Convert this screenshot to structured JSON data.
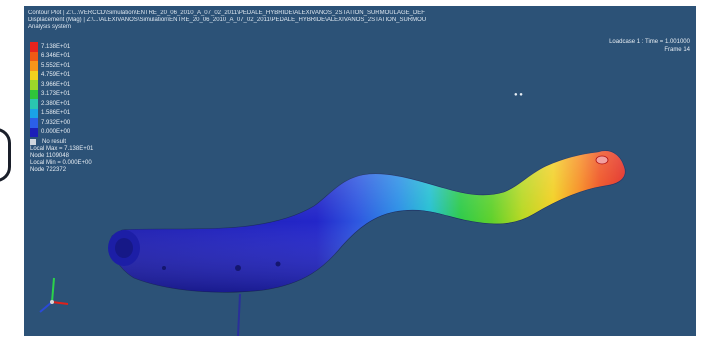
{
  "header": {
    "line1": "Contour Plot | Z:\\...\\VERCCD\\Simulation\\ENTRE_20_06_2010_A_07_02_2011\\PEDALE_HYBRIDE\\ALEXIVANOS_2STATION_SURMOULAGE_DEF",
    "line2": "Displacement (Mag) | Z:\\...\\ALEXIVANOS\\Simulation\\ENTRE_20_06_2010_A_07_02_2011\\PEDALE_HYBRIDE\\ALEXIVANOS_2STATION_SURMOU",
    "line3": "Analysis system"
  },
  "loadcase": {
    "line1": "Loadcase 1 : Time = 1.001000",
    "line2": "Frame 14"
  },
  "legend": {
    "items": [
      {
        "label": "7.138E+01",
        "color": "#e8231d"
      },
      {
        "label": "6.346E+01",
        "color": "#f05a14"
      },
      {
        "label": "5.552E+01",
        "color": "#f7951a"
      },
      {
        "label": "4.759E+01",
        "color": "#f2d11e"
      },
      {
        "label": "3.966E+01",
        "color": "#9cd62a"
      },
      {
        "label": "3.173E+01",
        "color": "#2fc63a"
      },
      {
        "label": "2.380E+01",
        "color": "#2ac6b0"
      },
      {
        "label": "1.586E+01",
        "color": "#1aa3e8"
      },
      {
        "label": "7.932E+00",
        "color": "#2b5fe8"
      },
      {
        "label": "0.000E+00",
        "color": "#1c1fb8"
      }
    ],
    "no_result": "No result",
    "max_label": "Local Max = 7.138E+01",
    "max_node": "Node 1109048",
    "min_label": "Local Min = 0.000E+00",
    "min_node": "Node 722372"
  },
  "marker": "● ●"
}
